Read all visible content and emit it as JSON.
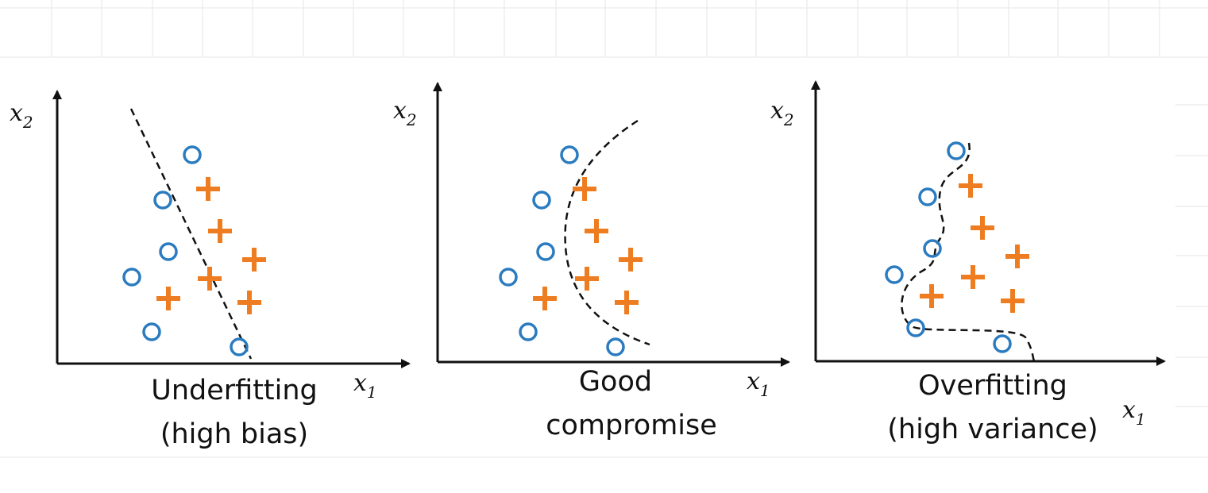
{
  "panels": [
    {
      "x_axis": {
        "symbol": "x",
        "subscript": "1"
      },
      "y_axis": {
        "symbol": "x",
        "subscript": "2"
      },
      "caption": [
        "Underfitting",
        "(high bias)"
      ]
    },
    {
      "x_axis": {
        "symbol": "x",
        "subscript": "1"
      },
      "y_axis": {
        "symbol": "x",
        "subscript": "2"
      },
      "caption": [
        "Good",
        "compromise"
      ]
    },
    {
      "x_axis": {
        "symbol": "x",
        "subscript": "1"
      },
      "y_axis": {
        "symbol": "x",
        "subscript": "2"
      },
      "caption": [
        "Overfitting",
        "(high variance)"
      ]
    }
  ]
}
